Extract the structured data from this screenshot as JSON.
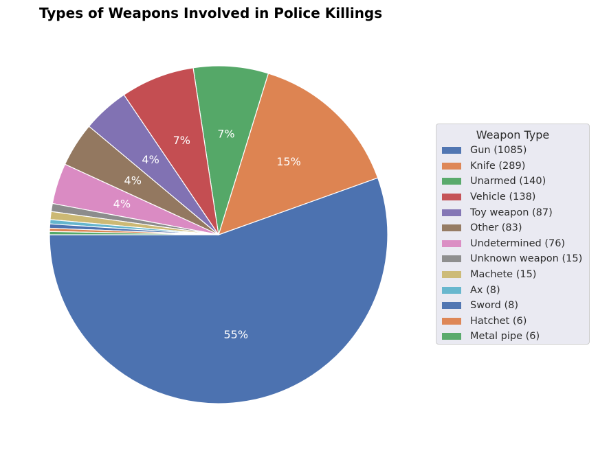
{
  "chart_data": {
    "type": "pie",
    "title": "Types of Weapons Involved in Police Killings",
    "legend_title": "Weapon Type",
    "legend_position": "right",
    "slices": [
      {
        "label": "Gun (1085)",
        "value": 1085,
        "pct_label": "55%",
        "color": "#4c72b0"
      },
      {
        "label": "Knife (289)",
        "value": 289,
        "pct_label": "15%",
        "color": "#dd8452"
      },
      {
        "label": "Unarmed (140)",
        "value": 140,
        "pct_label": "7%",
        "color": "#55a868"
      },
      {
        "label": "Vehicle (138)",
        "value": 138,
        "pct_label": "7%",
        "color": "#c44e52"
      },
      {
        "label": "Toy weapon (87)",
        "value": 87,
        "pct_label": "4%",
        "color": "#8172b3"
      },
      {
        "label": "Other (83)",
        "value": 83,
        "pct_label": "4%",
        "color": "#937860"
      },
      {
        "label": "Undetermined (76)",
        "value": 76,
        "pct_label": "4%",
        "color": "#da8bc3"
      },
      {
        "label": "Unknown weapon (15)",
        "value": 15,
        "pct_label": "",
        "color": "#8c8c8c"
      },
      {
        "label": "Machete (15)",
        "value": 15,
        "pct_label": "",
        "color": "#ccb974"
      },
      {
        "label": "Ax (8)",
        "value": 8,
        "pct_label": "",
        "color": "#64b5cd"
      },
      {
        "label": "Sword (8)",
        "value": 8,
        "pct_label": "",
        "color": "#4c72b0"
      },
      {
        "label": "Hatchet (6)",
        "value": 6,
        "pct_label": "",
        "color": "#dd8452"
      },
      {
        "label": "Metal pipe (6)",
        "value": 6,
        "pct_label": "",
        "color": "#55a868"
      }
    ]
  }
}
